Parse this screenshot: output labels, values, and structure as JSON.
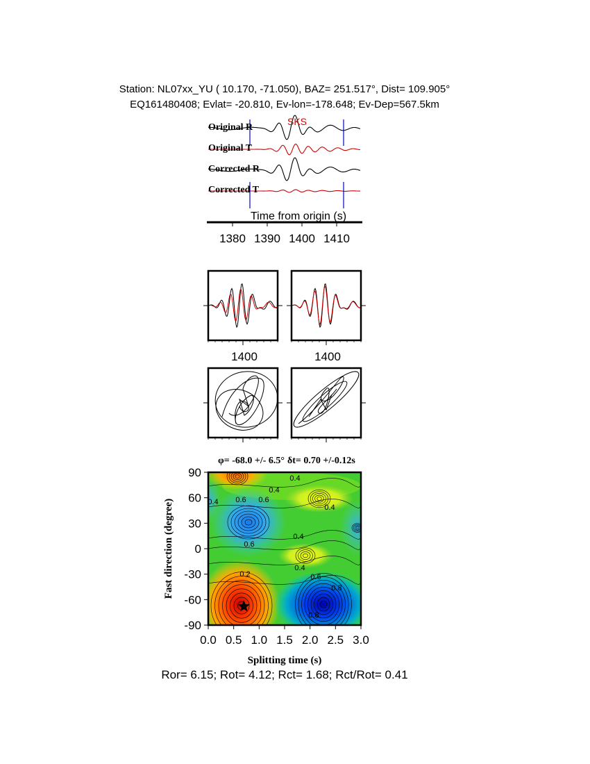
{
  "header": {
    "station_line": "Station: NL07xx_YU (  10.170,  -71.050), BAZ=  251.517°, Dist=  109.905°",
    "event_line": "EQ161480408; Evlat= -20.810, Ev-lon=-178.648; Ev-Dep=567.5km"
  },
  "traces": {
    "labels": [
      "Original R",
      "Original T",
      "Corrected R",
      "Corrected T"
    ],
    "phase_label": "SKS",
    "xaxis_title": "Time from origin (s)",
    "xticks": [
      1380,
      1390,
      1400,
      1410
    ],
    "xlim": [
      1373,
      1417
    ],
    "window_marks": [
      1385,
      1412
    ],
    "colors": {
      "R": "#000000",
      "T": "#cc0000",
      "window": "#0000cc"
    }
  },
  "waveform_panels": {
    "xtick_label": 1400
  },
  "chart_data": {
    "type": "heatmap",
    "title_phi": "φ= -68.0 +/- 6.5°",
    "title_dt": "δt= 0.70 +/-0.12s",
    "xlabel": "Splitting time (s)",
    "ylabel": "Fast direction (degree)",
    "xlim": [
      0.0,
      3.0
    ],
    "ylim": [
      -90,
      90
    ],
    "xticks": [
      "0.0",
      "0.5",
      "1.0",
      "1.5",
      "2.0",
      "2.5",
      "3.0"
    ],
    "yticks": [
      "90",
      "60",
      "30",
      "0",
      "-30",
      "-60",
      "-90"
    ],
    "best_fit": {
      "dt": 0.7,
      "phi": -68
    },
    "contour_labels": [
      "0.2",
      "0.4",
      "0.4",
      "0.4",
      "0.4",
      "0.4",
      "0.4",
      "0.6",
      "0.6",
      "0.6",
      "0.6",
      "0.8",
      "0.8"
    ],
    "colormap": [
      "#cc0000",
      "#ff8800",
      "#ffff00",
      "#33cc33",
      "#00cccc",
      "#0066ff",
      "#0000aa"
    ]
  },
  "footer": {
    "ratios": "Ror= 6.15; Rot= 4.12; Rct= 1.68; Rct/Rot= 0.41"
  }
}
